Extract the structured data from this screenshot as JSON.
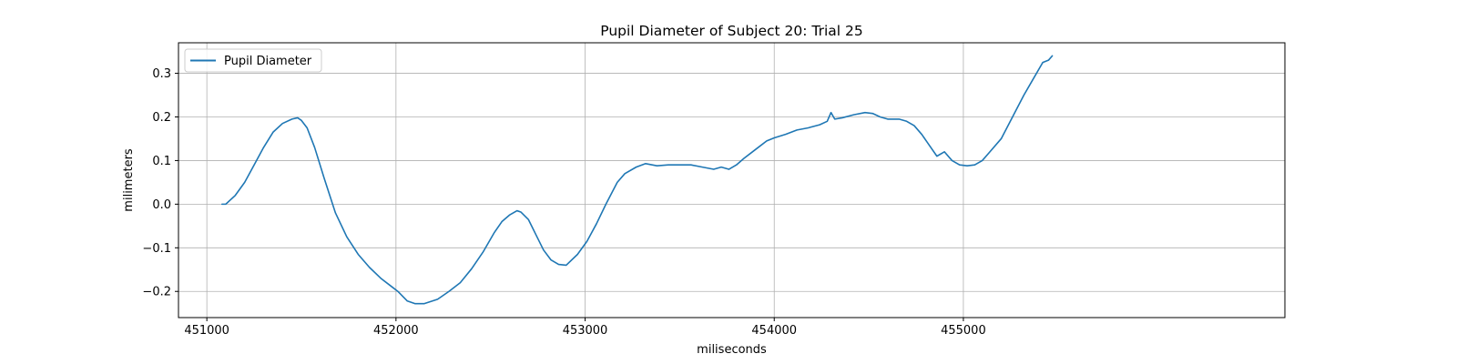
{
  "chart_data": {
    "type": "line",
    "title": "Pupil Diameter of Subject 20: Trial 25",
    "xlabel": "miliseconds",
    "ylabel": "milimeters",
    "xlim": [
      450850,
      456700
    ],
    "ylim": [
      -0.26,
      0.37
    ],
    "xticks": [
      451000,
      452000,
      453000,
      454000,
      455000
    ],
    "yticks": [
      -0.2,
      -0.1,
      0.0,
      0.1,
      0.2,
      0.3
    ],
    "grid": true,
    "legend_position": "top-left",
    "colors": {
      "line": "#1f77b4",
      "grid": "#b0b0b0"
    },
    "series": [
      {
        "name": "Pupil Diameter",
        "x": [
          451080,
          451100,
          451150,
          451200,
          451250,
          451300,
          451350,
          451400,
          451450,
          451480,
          451500,
          451530,
          451570,
          451620,
          451680,
          451740,
          451800,
          451860,
          451920,
          451980,
          452010,
          452060,
          452100,
          452150,
          452220,
          452280,
          452340,
          452400,
          452460,
          452520,
          452560,
          452600,
          452640,
          452660,
          452700,
          452740,
          452780,
          452820,
          452860,
          452900,
          452960,
          453010,
          453060,
          453110,
          453170,
          453210,
          453270,
          453320,
          453380,
          453440,
          453500,
          453560,
          453620,
          453680,
          453720,
          453760,
          453800,
          453840,
          453900,
          453960,
          454000,
          454060,
          454120,
          454180,
          454240,
          454280,
          454300,
          454320,
          454360,
          454420,
          454480,
          454520,
          454560,
          454600,
          454660,
          454700,
          454740,
          454780,
          454820,
          454860,
          454900,
          454940,
          454980,
          455020,
          455060,
          455100,
          455140,
          455200,
          455260,
          455320,
          455380,
          455420,
          455450,
          455470
        ],
        "values": [
          0.0,
          0.0,
          0.02,
          0.05,
          0.09,
          0.13,
          0.165,
          0.185,
          0.195,
          0.198,
          0.192,
          0.175,
          0.13,
          0.06,
          -0.02,
          -0.075,
          -0.115,
          -0.145,
          -0.17,
          -0.19,
          -0.2,
          -0.222,
          -0.228,
          -0.228,
          -0.218,
          -0.2,
          -0.18,
          -0.148,
          -0.11,
          -0.065,
          -0.04,
          -0.025,
          -0.015,
          -0.018,
          -0.035,
          -0.07,
          -0.105,
          -0.128,
          -0.138,
          -0.14,
          -0.115,
          -0.085,
          -0.045,
          0.0,
          0.05,
          0.07,
          0.085,
          0.093,
          0.088,
          0.09,
          0.09,
          0.09,
          0.085,
          0.08,
          0.085,
          0.08,
          0.09,
          0.105,
          0.125,
          0.145,
          0.152,
          0.16,
          0.17,
          0.175,
          0.182,
          0.19,
          0.21,
          0.195,
          0.198,
          0.205,
          0.21,
          0.208,
          0.2,
          0.195,
          0.195,
          0.19,
          0.18,
          0.16,
          0.135,
          0.11,
          0.12,
          0.1,
          0.09,
          0.088,
          0.09,
          0.1,
          0.12,
          0.15,
          0.2,
          0.25,
          0.295,
          0.325,
          0.33,
          0.34
        ]
      }
    ]
  }
}
